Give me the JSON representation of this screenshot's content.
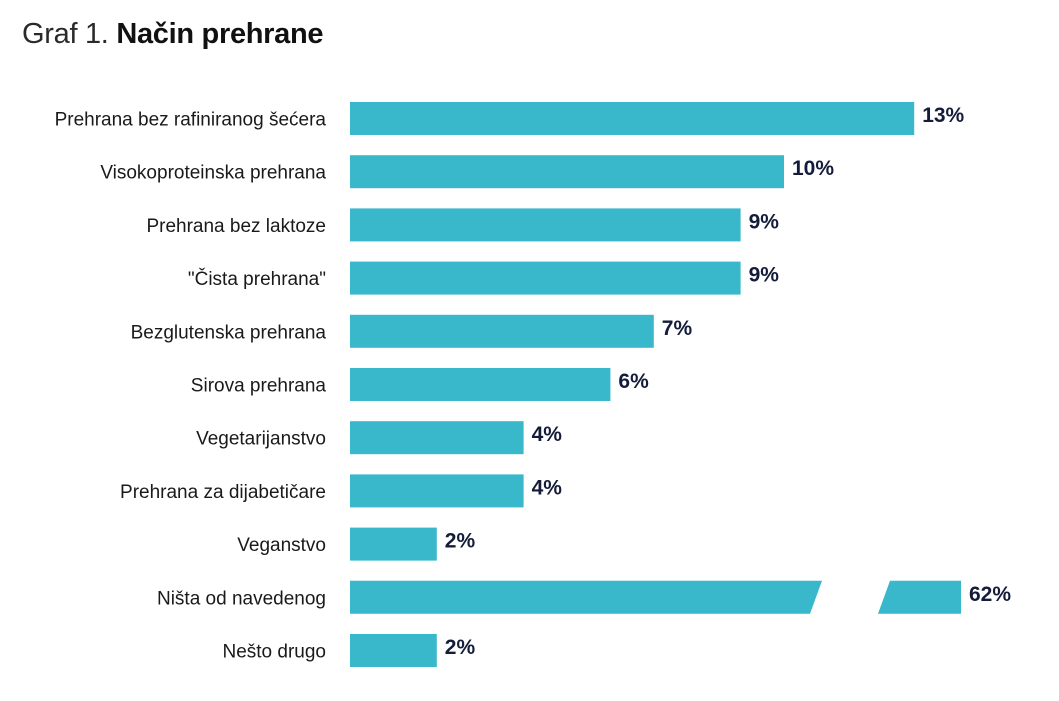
{
  "title": {
    "prefix": "Graf 1.",
    "main": "Način prehrane"
  },
  "colors": {
    "bar": "#39b7cb",
    "value_label": "#141c3a",
    "category_label": "#1a1a1a"
  },
  "chart_data": {
    "type": "bar",
    "orientation": "horizontal",
    "title": "Način prehrane",
    "xlabel": "",
    "ylabel": "",
    "grid": false,
    "axis_break": {
      "category": "Ništa od navedenog"
    },
    "categories": [
      "Prehrana bez rafiniranog šećera",
      "Visokoproteinska prehrana",
      "Prehrana bez laktoze",
      "\"Čista prehrana\"",
      "Bezglutenska prehrana",
      "Sirova prehrana",
      "Vegetarijanstvo",
      "Prehrana za dijabetičare",
      "Veganstvo",
      "Ništa od navedenog",
      "Nešto drugo"
    ],
    "values": [
      13,
      10,
      9,
      9,
      7,
      6,
      4,
      4,
      2,
      62,
      2
    ],
    "value_labels": [
      "13%",
      "10%",
      "9%",
      "9%",
      "7%",
      "6%",
      "4%",
      "4%",
      "2%",
      "62%",
      "2%"
    ]
  }
}
